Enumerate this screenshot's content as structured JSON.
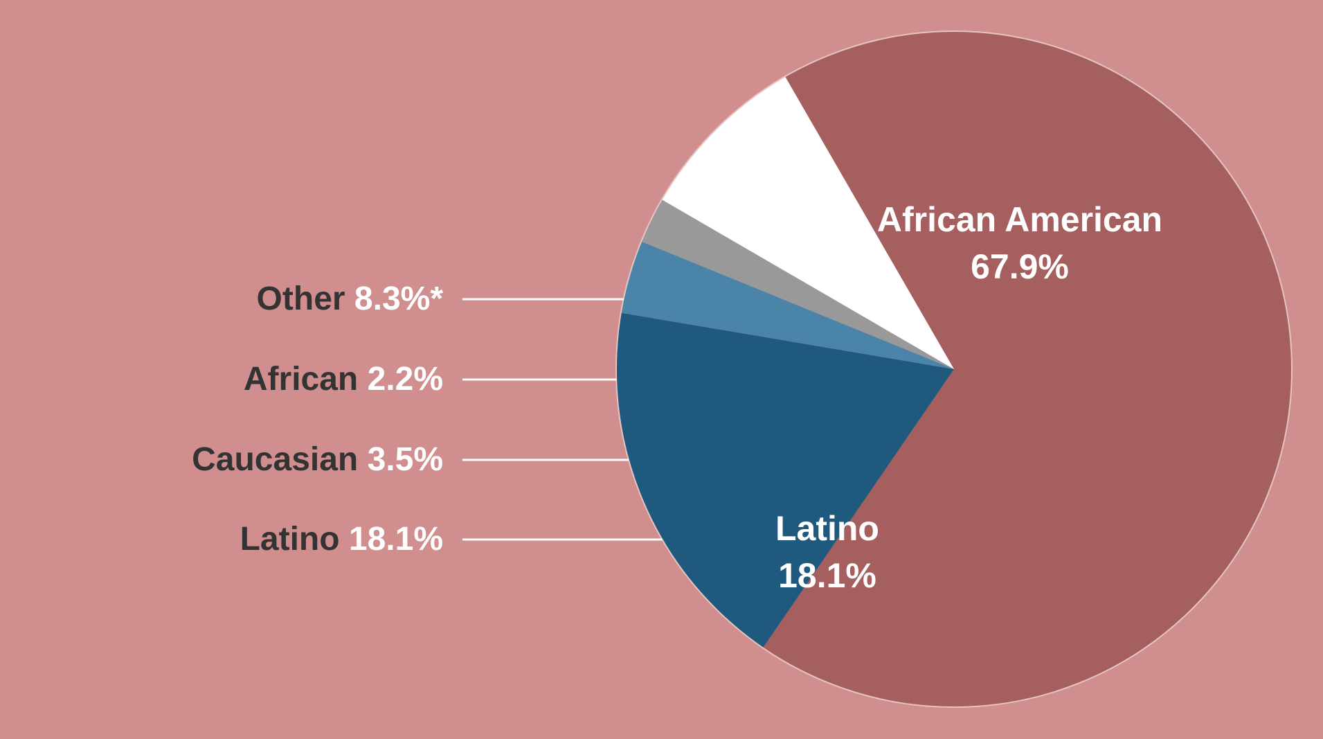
{
  "chart_data": {
    "type": "pie",
    "slices": [
      {
        "name": "African American",
        "value": 67.9,
        "color": "#a65f5f"
      },
      {
        "name": "Latino",
        "value": 18.1,
        "color": "#1f5a7e"
      },
      {
        "name": "Caucasian",
        "value": 3.5,
        "color": "#4a84a9"
      },
      {
        "name": "African",
        "value": 2.2,
        "color": "#999999"
      },
      {
        "name": "Other",
        "value": 8.3,
        "color": "#ffffff"
      }
    ],
    "inside_labels": [
      {
        "name": "African American",
        "percent": "67.9%"
      },
      {
        "name": "Latino",
        "percent": "18.1%"
      }
    ],
    "side_labels": [
      {
        "name": "Other",
        "percent": "8.3%*"
      },
      {
        "name": "African",
        "percent": "2.2%"
      },
      {
        "name": "Caucasian",
        "percent": "3.5%"
      },
      {
        "name": "Latino",
        "percent": "18.1%"
      }
    ],
    "legend_placement": "left, with leader lines"
  },
  "colors": {
    "background": "#d08e8e",
    "leader_line": "#ffffff"
  }
}
